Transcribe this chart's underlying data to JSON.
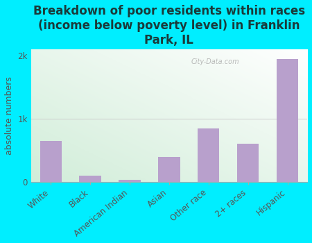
{
  "title": "Breakdown of poor residents within races\n(income below poverty level) in Franklin\nPark, IL",
  "ylabel": "absolute numbers",
  "categories": [
    "White",
    "Black",
    "American Indian",
    "Asian",
    "Other race",
    "2+ races",
    "Hispanic"
  ],
  "values": [
    650,
    100,
    30,
    400,
    850,
    600,
    1950
  ],
  "bar_color": "#b8a0cc",
  "background_outer": "#00eeff",
  "ylim": [
    0,
    2100
  ],
  "ytick_labels": [
    "0",
    "1k",
    "2k"
  ],
  "ytick_values": [
    0,
    1000,
    2000
  ],
  "title_fontsize": 12,
  "ylabel_fontsize": 9,
  "tick_fontsize": 8.5,
  "grid_color": "#cccccc",
  "watermark_text": "City-Data.com",
  "title_color": "#1a3a3a",
  "axis_text_color": "#555555"
}
